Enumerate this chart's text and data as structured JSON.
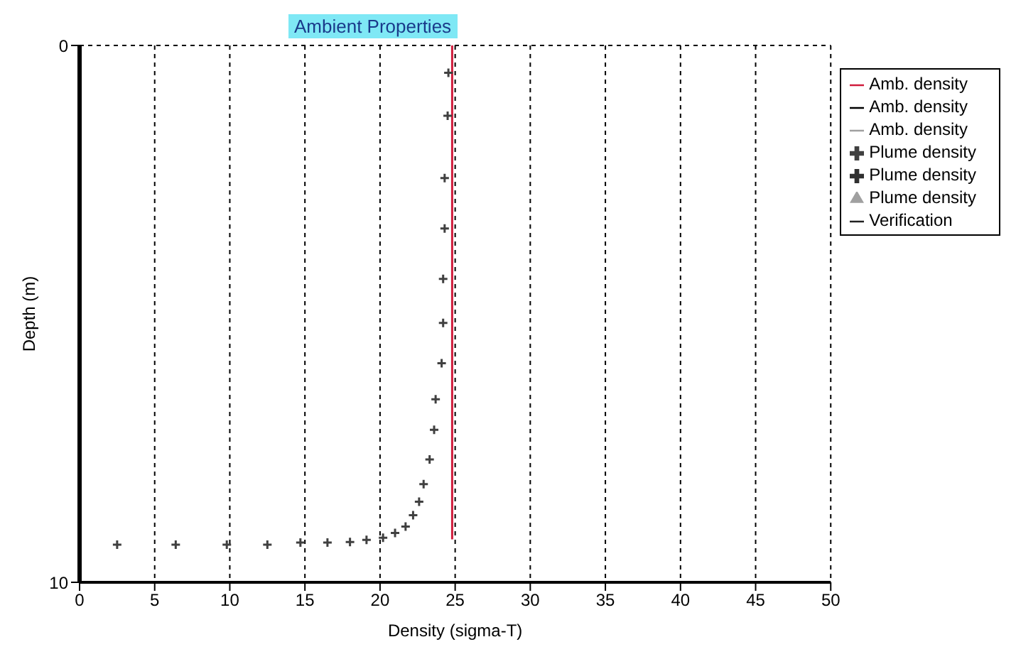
{
  "chart_data": {
    "type": "scatter",
    "title": "Ambient Properties",
    "xlabel": "Density (sigma-T)",
    "ylabel": "Depth (m)",
    "xlim": [
      0,
      50
    ],
    "xticks": [
      0,
      5,
      10,
      15,
      20,
      25,
      30,
      35,
      40,
      45,
      50
    ],
    "ylim": [
      10,
      0
    ],
    "yticks": [
      0,
      10
    ],
    "grid": true,
    "legend": "right",
    "series": [
      {
        "name": "Amb. density",
        "type": "line",
        "color": "#d01c3c",
        "x": [
          24.8,
          24.8
        ],
        "values": [
          0,
          9.2
        ]
      },
      {
        "name": "Amb. density",
        "type": "line",
        "color": "#000000"
      },
      {
        "name": "Amb. density",
        "type": "line",
        "color": "#a0a0a0"
      },
      {
        "name": "Plume density",
        "marker": "cross",
        "color": "#404040",
        "x": [
          24.55,
          24.5,
          24.3,
          24.3,
          24.2,
          24.2,
          24.1,
          23.7,
          23.6,
          23.3,
          22.9,
          22.6,
          22.2,
          21.7,
          21.0,
          20.2,
          19.1,
          18.0,
          16.5,
          14.7,
          12.5,
          9.8,
          6.4,
          2.5
        ],
        "values": [
          0.51,
          1.31,
          2.47,
          3.41,
          4.35,
          5.17,
          5.92,
          6.59,
          7.16,
          7.71,
          8.17,
          8.5,
          8.75,
          8.96,
          9.08,
          9.17,
          9.21,
          9.25,
          9.26,
          9.26,
          9.3,
          9.3,
          9.3,
          9.3
        ]
      },
      {
        "name": "Plume density",
        "marker": "cross",
        "color": "#303030"
      },
      {
        "name": "Plume density",
        "marker": "triangle",
        "color": "#a0a0a0"
      },
      {
        "name": "Verification",
        "type": "line",
        "color": "#202020"
      }
    ]
  }
}
